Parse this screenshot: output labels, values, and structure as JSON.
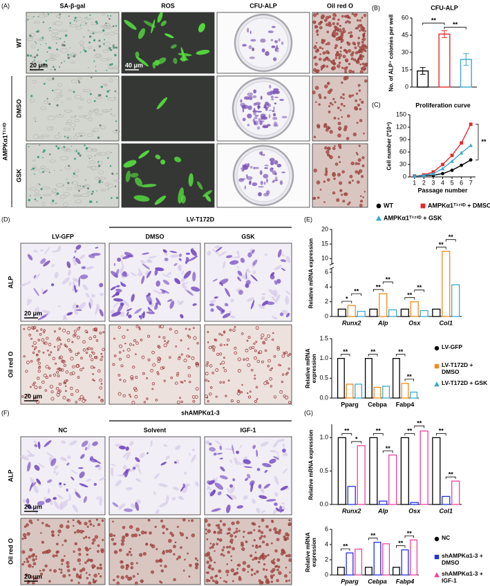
{
  "panel_a": {
    "label": "(A)",
    "columns": [
      "SA-β-gal",
      "ROS",
      "CFU-ALP",
      "Oil red O"
    ],
    "rows": [
      "WT",
      "DMSO",
      "GSK"
    ],
    "row_group": "AMPKα1ᵀ¹⁷²ᴰ",
    "scale_bars": [
      "20 μm",
      "40 μm"
    ]
  },
  "panel_d": {
    "label": "(D)",
    "control": "LV-GFP",
    "group": "LV-T172D",
    "columns": [
      "DMSO",
      "GSK"
    ],
    "rows": [
      "ALP",
      "Oil red O"
    ],
    "scale_bars": [
      "20 μm",
      "20 μm"
    ]
  },
  "panel_f": {
    "label": "(F)",
    "control": "NC",
    "group": "shAMPKα1-3",
    "columns": [
      "Solvent",
      "IGF-1"
    ],
    "rows": [
      "ALP",
      "Oil red O"
    ],
    "scale_bars": [
      "20 μm",
      "20 μm"
    ]
  },
  "chart_data": [
    {
      "type": "bar",
      "panel_label": "(B)",
      "title": "CFU-ALP",
      "ylabel": "No. of ALP⁺ colonies per well",
      "values": [
        14,
        46,
        24
      ],
      "errors": [
        3,
        3,
        5
      ],
      "colors": [
        "#000000",
        "#e8262a",
        "#3aa9d0"
      ],
      "ylim": [
        0,
        60
      ],
      "yticks": [
        0,
        15,
        30,
        45,
        60
      ],
      "significance": [
        {
          "label": "**",
          "pair": [
            0,
            1
          ]
        },
        {
          "label": "**",
          "pair": [
            1,
            2
          ]
        }
      ]
    },
    {
      "type": "line",
      "panel_label": "(C)",
      "title": "Proliferation curve",
      "xlabel": "Passage number",
      "ylabel": "Cell number (*10⁴)",
      "x": [
        1,
        2,
        3,
        4,
        5,
        6,
        7
      ],
      "xlim": [
        0.5,
        7.5
      ],
      "xticks": [
        1,
        2,
        3,
        4,
        5,
        6,
        7
      ],
      "ylim": [
        0,
        150
      ],
      "yticks": [
        0,
        30,
        60,
        90,
        120,
        150
      ],
      "annotation": "**",
      "series": [
        {
          "name": "WT",
          "color": "#000000",
          "marker": "circle",
          "values": [
            2,
            3,
            4,
            8,
            16,
            28,
            41
          ]
        },
        {
          "name": "AMPKα1ᵀ¹⁷²ᴰ + DMSO",
          "color": "#e8262a",
          "marker": "square",
          "values": [
            2,
            5,
            12,
            30,
            52,
            82,
            127
          ]
        },
        {
          "name": "AMPKα1ᵀ¹⁷²ᴰ + GSK",
          "color": "#3aa9d0",
          "marker": "triangle",
          "values": [
            2,
            4,
            8,
            20,
            38,
            58,
            76
          ]
        }
      ]
    },
    {
      "type": "bar",
      "panel_label": "(E)",
      "ylabel": "Relative mRNA expression",
      "categories": [
        "Runx2",
        "Alp",
        "Osx",
        "Col1"
      ],
      "category_style": "italic",
      "ylim": [
        0,
        20
      ],
      "yticks": [
        0,
        2,
        4,
        6,
        10,
        15,
        20
      ],
      "axis_break": [
        6.5,
        8
      ],
      "series": [
        {
          "color": "#000000",
          "values": [
            1,
            1,
            1,
            1
          ]
        },
        {
          "color": "#f28a1e",
          "values": [
            1.5,
            3.1,
            2.0,
            12.5
          ]
        },
        {
          "color": "#3aa9d0",
          "values": [
            0.7,
            0.9,
            0.8,
            4.3
          ]
        }
      ],
      "significance": [
        {
          "label": "*",
          "category": 0,
          "pair": [
            0,
            1
          ]
        },
        {
          "label": "**",
          "category": 0,
          "pair": [
            1,
            2
          ]
        },
        {
          "label": "**",
          "category": 1,
          "pair": [
            0,
            1
          ]
        },
        {
          "label": "**",
          "category": 1,
          "pair": [
            1,
            2
          ]
        },
        {
          "label": "**",
          "category": 2,
          "pair": [
            0,
            1
          ]
        },
        {
          "label": "**",
          "category": 2,
          "pair": [
            1,
            2
          ]
        },
        {
          "label": "**",
          "category": 3,
          "pair": [
            0,
            1
          ]
        },
        {
          "label": "**",
          "category": 3,
          "pair": [
            1,
            2
          ]
        }
      ]
    },
    {
      "type": "bar",
      "ylabel": "Relative mRNA expression",
      "categories": [
        "Pparg",
        "Cebpa",
        "Fabp4"
      ],
      "ylim": [
        0,
        1.5
      ],
      "yticks": [
        {
          "value": 0,
          "label": "0.0"
        },
        {
          "value": 0.5,
          "label": "0.5"
        },
        {
          "value": 1,
          "label": "1.0"
        },
        {
          "value": 1.5,
          "label": "1.5"
        }
      ],
      "series": [
        {
          "name": "LV-GFP",
          "color": "#000000",
          "marker": "circle",
          "values": [
            1,
            1,
            1
          ]
        },
        {
          "name": "LV-T172D + DMSO",
          "color": "#f28a1e",
          "marker": "square",
          "values": [
            0.35,
            0.27,
            0.37
          ]
        },
        {
          "name": "LV-T172D + GSK",
          "color": "#3aa9d0",
          "marker": "triangle",
          "values": [
            0.35,
            0.3,
            0.15
          ]
        }
      ],
      "significance": [
        {
          "label": "**",
          "category": 0,
          "pair": [
            0,
            1
          ]
        },
        {
          "label": "**",
          "category": 1,
          "pair": [
            0,
            1
          ]
        },
        {
          "label": "**",
          "category": 2,
          "pair": [
            0,
            1
          ]
        },
        {
          "label": "**",
          "category": 2,
          "pair": [
            1,
            2
          ]
        }
      ]
    },
    {
      "type": "bar",
      "panel_label": "(G)",
      "ylabel": "Relative mRNA expression",
      "categories": [
        "Runx2",
        "Alp",
        "Osx",
        "Col1"
      ],
      "category_style": "italic",
      "ylim": [
        0,
        1.2
      ],
      "yticks": [
        {
          "value": 0,
          "label": "0.0"
        },
        {
          "value": 0.5,
          "label": "0.5"
        },
        {
          "value": 1,
          "label": "1.0"
        }
      ],
      "series": [
        {
          "color": "#000000",
          "values": [
            1,
            1,
            1,
            1
          ]
        },
        {
          "color": "#1f2fe6",
          "values": [
            0.27,
            0.05,
            0.03,
            0.12
          ]
        },
        {
          "color": "#f0409a",
          "values": [
            0.88,
            0.74,
            1.1,
            0.35
          ]
        }
      ],
      "significance": [
        {
          "label": "**",
          "category": 0,
          "pair": [
            0,
            1
          ]
        },
        {
          "label": "*",
          "category": 0,
          "pair": [
            1,
            2
          ]
        },
        {
          "label": "**",
          "category": 1,
          "pair": [
            0,
            1
          ]
        },
        {
          "label": "**",
          "category": 1,
          "pair": [
            1,
            2
          ]
        },
        {
          "label": "**",
          "category": 2,
          "pair": [
            0,
            1
          ]
        },
        {
          "label": "**",
          "category": 2,
          "pair": [
            1,
            2
          ]
        },
        {
          "label": "**",
          "category": 3,
          "pair": [
            0,
            1
          ]
        },
        {
          "label": "**",
          "category": 3,
          "pair": [
            1,
            2
          ]
        }
      ]
    },
    {
      "type": "bar",
      "ylabel": "Relative mRNA expression",
      "categories": [
        "Pparg",
        "Cebpa",
        "Fabp4"
      ],
      "category_style": "italic",
      "ylim": [
        0,
        6
      ],
      "yticks": [
        0,
        2,
        4,
        6
      ],
      "series": [
        {
          "name": "NC",
          "color": "#000000",
          "marker": "circle",
          "values": [
            1,
            1,
            1
          ]
        },
        {
          "name": "shAMPKα1-3 + DMSO",
          "color": "#1f2fe6",
          "marker": "square",
          "values": [
            2.9,
            4.3,
            3.3
          ]
        },
        {
          "name": "shAMPKα1-3 + IGF-1",
          "color": "#f0409a",
          "marker": "triangle",
          "values": [
            3.4,
            4.1,
            4.6
          ]
        }
      ],
      "significance": [
        {
          "label": "**",
          "category": 0,
          "pair": [
            0,
            1
          ]
        },
        {
          "label": "**",
          "category": 1,
          "pair": [
            0,
            1
          ]
        },
        {
          "label": "**",
          "category": 2,
          "pair": [
            0,
            1
          ]
        },
        {
          "label": "**",
          "category": 2,
          "pair": [
            1,
            2
          ]
        }
      ]
    }
  ]
}
